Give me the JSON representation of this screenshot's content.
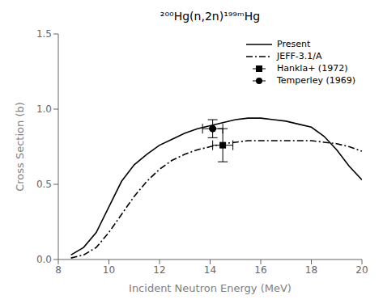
{
  "chart_data": {
    "type": "line",
    "title": "²⁰⁰Hg(n,2n)¹⁹⁹ᵐHg",
    "x_label": "Incident Neutron Energy (MeV)",
    "y_label": "Cross Section (b)",
    "xlim": [
      8,
      20
    ],
    "ylim": [
      0.0,
      1.5
    ],
    "xticks": [
      8,
      10,
      12,
      14,
      16,
      18,
      20
    ],
    "yticks": [
      {
        "value": 0.0,
        "label": "0.0"
      },
      0.5,
      {
        "value": 1.0,
        "label": "1.0"
      },
      1.5
    ],
    "grid": false,
    "legend": "upper right",
    "series": [
      {
        "name": "Present",
        "type": "line",
        "color": "#000000",
        "line_style": "solid",
        "x": [
          8.5,
          9.0,
          9.5,
          10.0,
          10.5,
          11.0,
          11.5,
          12.0,
          12.5,
          13.0,
          13.5,
          14.0,
          14.5,
          15.0,
          15.5,
          16.0,
          16.5,
          17.0,
          17.5,
          18.0,
          18.5,
          19.0,
          19.5,
          20.0
        ],
        "values": [
          0.03,
          0.08,
          0.18,
          0.35,
          0.52,
          0.63,
          0.7,
          0.76,
          0.8,
          0.84,
          0.87,
          0.89,
          0.91,
          0.93,
          0.94,
          0.94,
          0.93,
          0.92,
          0.9,
          0.88,
          0.82,
          0.73,
          0.62,
          0.53
        ]
      },
      {
        "name": "JEFF-3.1/A",
        "type": "line",
        "color": "#000000",
        "line_style": "dashdot",
        "x": [
          8.5,
          9.0,
          9.5,
          10.0,
          10.5,
          11.0,
          11.5,
          12.0,
          12.5,
          13.0,
          13.5,
          14.0,
          14.5,
          15.0,
          15.5,
          16.0,
          16.5,
          17.0,
          17.5,
          18.0,
          18.5,
          19.0,
          19.5,
          20.0
        ],
        "values": [
          0.01,
          0.03,
          0.08,
          0.18,
          0.3,
          0.42,
          0.52,
          0.6,
          0.66,
          0.7,
          0.73,
          0.75,
          0.77,
          0.78,
          0.79,
          0.79,
          0.79,
          0.79,
          0.79,
          0.79,
          0.78,
          0.77,
          0.75,
          0.72
        ]
      },
      {
        "name": "Hankla+ (1972)",
        "type": "scatter",
        "color": "#000000",
        "marker": "square",
        "x": [
          14.5
        ],
        "values": [
          0.76
        ],
        "xerr": [
          0.4
        ],
        "yerr": [
          0.11
        ]
      },
      {
        "name": "Temperley (1969)",
        "type": "scatter",
        "color": "#000000",
        "marker": "circle",
        "x": [
          14.1
        ],
        "values": [
          0.87
        ],
        "xerr": [
          0.4
        ],
        "yerr": [
          0.06
        ]
      }
    ]
  }
}
